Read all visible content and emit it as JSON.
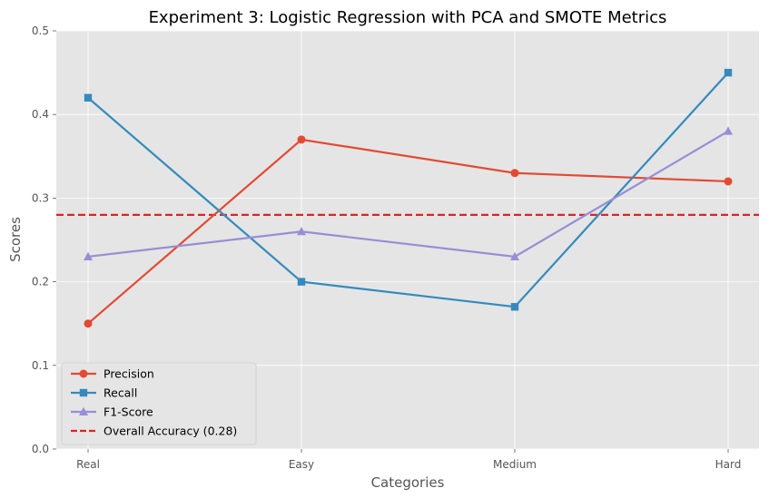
{
  "chart_data": {
    "type": "line",
    "title": "Experiment 3: Logistic Regression with PCA and SMOTE Metrics",
    "xlabel": "Categories",
    "ylabel": "Scores",
    "categories": [
      "Real",
      "Easy",
      "Medium",
      "Hard"
    ],
    "ylim": [
      0,
      0.5
    ],
    "yticks": [
      "0.0",
      "0.1",
      "0.2",
      "0.3",
      "0.4",
      "0.5"
    ],
    "grid": true,
    "legend_position": "lower-left",
    "series": [
      {
        "name": "Precision",
        "values": [
          0.15,
          0.37,
          0.33,
          0.32
        ],
        "color": "#E24A33",
        "marker": "circle"
      },
      {
        "name": "Recall",
        "values": [
          0.42,
          0.2,
          0.17,
          0.45
        ],
        "color": "#348ABD",
        "marker": "square"
      },
      {
        "name": "F1-Score",
        "values": [
          0.23,
          0.26,
          0.23,
          0.38
        ],
        "color": "#988ED5",
        "marker": "triangle"
      }
    ],
    "reference_line": {
      "name": "Overall Accuracy (0.28)",
      "value": 0.28,
      "color": "#D62728",
      "style": "dashed"
    }
  }
}
